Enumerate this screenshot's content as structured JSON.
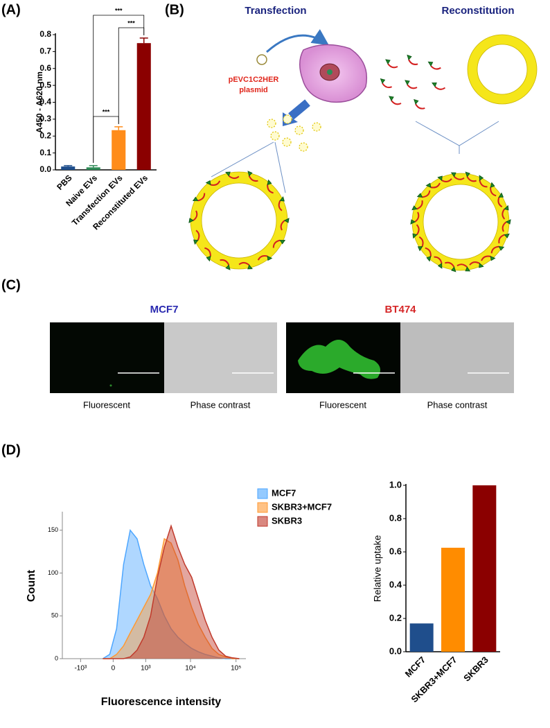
{
  "panels": {
    "a": "(A)",
    "b": "(B)",
    "c": "(C)",
    "d": "(D)"
  },
  "diagram": {
    "transfection": "Transfection",
    "reconstitution": "Reconstitution",
    "plasmid": [
      "pEVC1C2HER",
      "plasmid"
    ]
  },
  "microscopy": {
    "cell_lines": [
      "MCF7",
      "BT474"
    ],
    "captions": [
      "Fluorescent",
      "Phase contrast",
      "Fluorescent",
      "Phase contrast"
    ]
  },
  "chart_data": [
    {
      "type": "bar",
      "y_label": "A450 - A620 nm",
      "categories": [
        "PBS",
        "Naive EVs",
        "Transfection EVs",
        "Reconstituted EVs"
      ],
      "values": [
        0.02,
        0.015,
        0.235,
        0.75
      ],
      "errors": [
        0.005,
        0.01,
        0.02,
        0.03
      ],
      "colors": [
        "#1f4e8c",
        "#2e8b57",
        "#ff8c1a",
        "#8b0000"
      ],
      "ylim": [
        0,
        0.8
      ],
      "yticks": [
        {
          "value": 0,
          "label": "0.0"
        },
        0.1,
        0.2,
        0.3,
        0.4,
        0.5,
        0.6,
        0.7,
        0.8
      ],
      "annotations": [
        "***",
        "***",
        "***"
      ]
    },
    {
      "type": "area",
      "x_label": "Fluorescence intensity",
      "y_label": "Count",
      "xscale": "asinh",
      "x": [
        -220,
        -70,
        70,
        220,
        390,
        610,
        900,
        1300,
        1860,
        2640,
        3740,
        5290,
        7470,
        10600,
        14900,
        21000,
        29700,
        41900,
        59200,
        83300,
        118000
      ],
      "series": [
        {
          "name": "MCF7",
          "color": "#4da6ff",
          "values": [
            0,
            5,
            35,
            110,
            150,
            140,
            110,
            85,
            70,
            50,
            35,
            25,
            18,
            12,
            8,
            5,
            3,
            1,
            0,
            0,
            0
          ]
        },
        {
          "name": "SKBR3+MCF7",
          "color": "#ff9933",
          "values": [
            0,
            0,
            5,
            15,
            30,
            45,
            60,
            75,
            100,
            140,
            135,
            115,
            85,
            60,
            40,
            25,
            12,
            5,
            2,
            0,
            0
          ]
        },
        {
          "name": "SKBR3",
          "color": "#c0392b",
          "values": [
            0,
            0,
            0,
            0,
            2,
            10,
            25,
            50,
            95,
            130,
            155,
            130,
            110,
            95,
            70,
            45,
            25,
            10,
            3,
            1,
            0
          ]
        }
      ],
      "xlim": [
        -2600,
        165000
      ],
      "ylim": [
        0,
        170
      ],
      "xticks": [
        {
          "value": -1000,
          "label": "-10³"
        },
        0,
        {
          "value": 1000,
          "label": "10³"
        },
        {
          "value": 10000,
          "label": "10⁴"
        },
        {
          "value": 100000,
          "label": "10⁵"
        }
      ],
      "yticks": [
        0,
        50,
        100,
        150
      ]
    },
    {
      "type": "bar",
      "y_label": "Relative uptake",
      "categories": [
        "MCF7",
        "SKBR3+MCF7",
        "SKBR3"
      ],
      "values": [
        0.17,
        0.625,
        1.0
      ],
      "colors": [
        "#1f4e8c",
        "#ff8c00",
        "#8b0000"
      ],
      "ylim": [
        0,
        1.0
      ],
      "yticks": [
        {
          "value": 0,
          "label": "0.0"
        },
        0.2,
        0.4,
        0.6,
        0.8,
        {
          "value": 1.0,
          "label": "1.0"
        }
      ]
    }
  ]
}
